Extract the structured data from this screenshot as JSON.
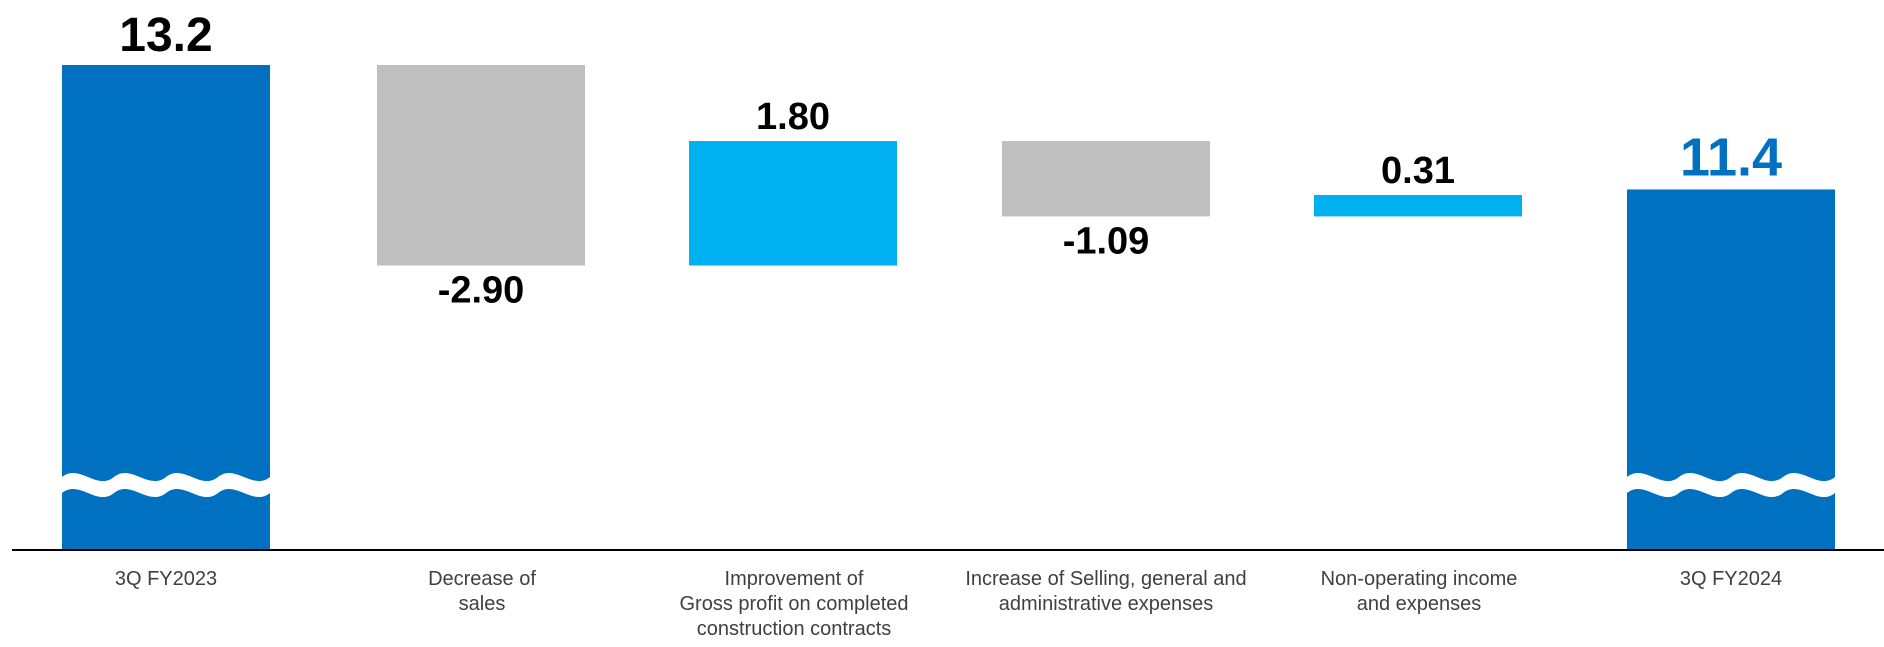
{
  "chart_data": {
    "type": "waterfall",
    "categories": [
      "3Q FY2023",
      "Decrease of\nsales",
      "Improvement of\nGross profit on completed\nconstruction contracts",
      "Increase of Selling, general and\nadministrative expenses",
      "Non-operating income\nand expenses",
      "3Q FY2024"
    ],
    "values": [
      13.2,
      -2.9,
      1.8,
      -1.09,
      0.31,
      11.4
    ],
    "value_labels": [
      "13.2",
      "-2.90",
      "1.80",
      "-1.09",
      "0.31",
      "11.4"
    ],
    "kinds": [
      "total",
      "change",
      "change",
      "change",
      "change",
      "total"
    ],
    "axis_break": true,
    "colors": {
      "total": "#0070C0",
      "increase": "#00B0F0",
      "decrease": "#BFBFBF",
      "label_default": "#000000",
      "label_final": "#0070C0",
      "category_text": "#404040",
      "axis": "#000000"
    }
  }
}
